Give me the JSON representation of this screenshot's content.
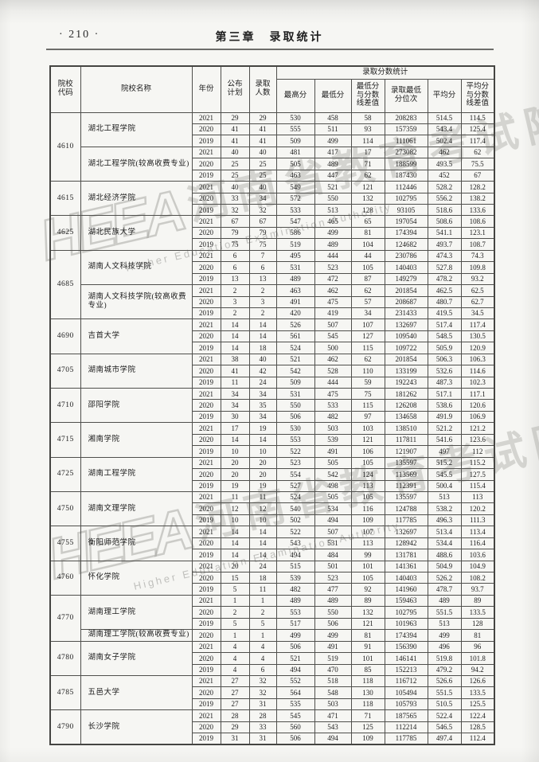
{
  "page": {
    "page_number": "· 210 ·",
    "chapter_title": "第三章　录取统计"
  },
  "watermark": {
    "logo": "HEEA",
    "cn": "河南省教育考试院",
    "en": "Higher Education Examination Authority"
  },
  "table": {
    "columns": {
      "code": "院校\n代码",
      "name": "院校名称",
      "year": "年份",
      "plan": "公布\n计划",
      "admitted": "录取\n人数",
      "score_group": "录取分数统计",
      "max": "最高分",
      "min": "最低分",
      "min_diff": "最低分\n与分数\n线差值",
      "min_rank": "录取最低\n分位次",
      "avg": "平均分",
      "avg_diff": "平均分\n与分数\n线差值"
    },
    "groups": [
      {
        "code": "4610",
        "schools": [
          {
            "name": "湖北工程学院",
            "rows": [
              [
                "2021",
                "29",
                "29",
                "530",
                "458",
                "58",
                "208283",
                "514.5",
                "114.5"
              ],
              [
                "2020",
                "41",
                "41",
                "555",
                "511",
                "93",
                "157359",
                "543.4",
                "125.4"
              ],
              [
                "2019",
                "41",
                "41",
                "509",
                "499",
                "114",
                "111061",
                "502.4",
                "117.4"
              ]
            ]
          },
          {
            "name": "湖北工程学院(较高收费专业)",
            "rows": [
              [
                "2021",
                "40",
                "40",
                "481",
                "417",
                "17",
                "273082",
                "462",
                "62"
              ],
              [
                "2020",
                "25",
                "25",
                "505",
                "489",
                "71",
                "188599",
                "493.5",
                "75.5"
              ],
              [
                "2019",
                "25",
                "25",
                "463",
                "447",
                "62",
                "187430",
                "452",
                "67"
              ]
            ]
          }
        ]
      },
      {
        "code": "4615",
        "schools": [
          {
            "name": "湖北经济学院",
            "rows": [
              [
                "2021",
                "40",
                "40",
                "549",
                "521",
                "121",
                "112446",
                "528.2",
                "128.2"
              ],
              [
                "2020",
                "33",
                "34",
                "572",
                "550",
                "132",
                "102795",
                "556.2",
                "138.2"
              ],
              [
                "2019",
                "32",
                "32",
                "533",
                "513",
                "128",
                "93105",
                "518.6",
                "133.6"
              ]
            ]
          }
        ]
      },
      {
        "code": "4625",
        "schools": [
          {
            "name": "湖北民族大学",
            "rows": [
              [
                "2021",
                "67",
                "67",
                "547",
                "465",
                "65",
                "197054",
                "508.6",
                "108.6"
              ],
              [
                "2020",
                "79",
                "79",
                "586",
                "499",
                "81",
                "174394",
                "541.1",
                "123.1"
              ],
              [
                "2019",
                "75",
                "75",
                "519",
                "489",
                "104",
                "124682",
                "493.7",
                "108.7"
              ]
            ]
          }
        ]
      },
      {
        "code": "4685",
        "schools": [
          {
            "name": "湖南人文科技学院",
            "rows": [
              [
                "2021",
                "6",
                "7",
                "495",
                "444",
                "44",
                "230786",
                "474.3",
                "74.3"
              ],
              [
                "2020",
                "6",
                "6",
                "531",
                "523",
                "105",
                "140403",
                "527.8",
                "109.8"
              ],
              [
                "2019",
                "13",
                "13",
                "489",
                "472",
                "87",
                "149279",
                "478.2",
                "93.2"
              ]
            ]
          },
          {
            "name": "湖南人文科技学院(较高收费专业)",
            "rows": [
              [
                "2021",
                "2",
                "2",
                "463",
                "462",
                "62",
                "201854",
                "462.5",
                "62.5"
              ],
              [
                "2020",
                "3",
                "3",
                "491",
                "475",
                "57",
                "208687",
                "480.7",
                "62.7"
              ],
              [
                "2019",
                "2",
                "2",
                "420",
                "419",
                "34",
                "231433",
                "419.5",
                "34.5"
              ]
            ]
          }
        ]
      },
      {
        "code": "4690",
        "schools": [
          {
            "name": "吉首大学",
            "rows": [
              [
                "2021",
                "14",
                "14",
                "526",
                "507",
                "107",
                "132697",
                "517.4",
                "117.4"
              ],
              [
                "2020",
                "14",
                "14",
                "561",
                "545",
                "127",
                "109540",
                "548.5",
                "130.5"
              ],
              [
                "2019",
                "14",
                "18",
                "524",
                "500",
                "115",
                "109722",
                "505.9",
                "120.9"
              ]
            ]
          }
        ]
      },
      {
        "code": "4705",
        "schools": [
          {
            "name": "湖南城市学院",
            "rows": [
              [
                "2021",
                "38",
                "40",
                "521",
                "462",
                "62",
                "201854",
                "506.3",
                "106.3"
              ],
              [
                "2020",
                "41",
                "42",
                "542",
                "528",
                "110",
                "133199",
                "532.6",
                "114.6"
              ],
              [
                "2019",
                "11",
                "24",
                "509",
                "444",
                "59",
                "192243",
                "487.3",
                "102.3"
              ]
            ]
          }
        ]
      },
      {
        "code": "4710",
        "schools": [
          {
            "name": "邵阳学院",
            "rows": [
              [
                "2021",
                "34",
                "34",
                "531",
                "475",
                "75",
                "181262",
                "517.1",
                "117.1"
              ],
              [
                "2020",
                "34",
                "35",
                "550",
                "533",
                "115",
                "126208",
                "538.6",
                "120.6"
              ],
              [
                "2019",
                "30",
                "34",
                "506",
                "482",
                "97",
                "134658",
                "491.9",
                "106.9"
              ]
            ]
          }
        ]
      },
      {
        "code": "4715",
        "schools": [
          {
            "name": "湘南学院",
            "rows": [
              [
                "2021",
                "17",
                "19",
                "530",
                "503",
                "103",
                "138510",
                "521.2",
                "121.2"
              ],
              [
                "2020",
                "14",
                "14",
                "553",
                "539",
                "121",
                "117811",
                "541.6",
                "123.6"
              ],
              [
                "2019",
                "10",
                "10",
                "522",
                "491",
                "106",
                "121907",
                "497",
                "112"
              ]
            ]
          }
        ]
      },
      {
        "code": "4725",
        "schools": [
          {
            "name": "湖南工程学院",
            "rows": [
              [
                "2021",
                "20",
                "20",
                "523",
                "505",
                "105",
                "135597",
                "515.2",
                "115.2"
              ],
              [
                "2020",
                "20",
                "20",
                "554",
                "542",
                "124",
                "113569",
                "545.5",
                "127.5"
              ],
              [
                "2019",
                "19",
                "19",
                "527",
                "498",
                "113",
                "112391",
                "500.4",
                "115.4"
              ]
            ]
          }
        ]
      },
      {
        "code": "4750",
        "schools": [
          {
            "name": "湖南文理学院",
            "rows": [
              [
                "2021",
                "11",
                "11",
                "524",
                "505",
                "105",
                "135597",
                "513",
                "113"
              ],
              [
                "2020",
                "12",
                "12",
                "540",
                "534",
                "116",
                "124788",
                "538.2",
                "120.2"
              ],
              [
                "2019",
                "10",
                "10",
                "502",
                "494",
                "109",
                "117785",
                "496.3",
                "111.3"
              ]
            ]
          }
        ]
      },
      {
        "code": "4755",
        "schools": [
          {
            "name": "衡阳师范学院",
            "rows": [
              [
                "2021",
                "14",
                "14",
                "522",
                "507",
                "107",
                "132697",
                "513.4",
                "113.4"
              ],
              [
                "2020",
                "14",
                "14",
                "543",
                "531",
                "113",
                "128942",
                "534.4",
                "116.4"
              ],
              [
                "2019",
                "14",
                "14",
                "494",
                "484",
                "99",
                "131781",
                "488.6",
                "103.6"
              ]
            ]
          }
        ]
      },
      {
        "code": "4760",
        "schools": [
          {
            "name": "怀化学院",
            "rows": [
              [
                "2021",
                "20",
                "24",
                "515",
                "501",
                "101",
                "141361",
                "504.9",
                "104.9"
              ],
              [
                "2020",
                "15",
                "18",
                "539",
                "523",
                "105",
                "140403",
                "526.2",
                "108.2"
              ],
              [
                "2019",
                "5",
                "11",
                "482",
                "477",
                "92",
                "141960",
                "478.7",
                "93.7"
              ]
            ]
          }
        ]
      },
      {
        "code": "4770",
        "schools": [
          {
            "name": "湖南理工学院",
            "rows": [
              [
                "2021",
                "1",
                "1",
                "489",
                "489",
                "89",
                "159463",
                "489",
                "89"
              ],
              [
                "2020",
                "2",
                "2",
                "553",
                "550",
                "132",
                "102795",
                "551.5",
                "133.5"
              ],
              [
                "2019",
                "5",
                "5",
                "517",
                "506",
                "121",
                "101963",
                "513",
                "128"
              ]
            ]
          },
          {
            "name": "湖南理工学院(较高收费专业)",
            "rows": [
              [
                "2020",
                "1",
                "1",
                "499",
                "499",
                "81",
                "174394",
                "499",
                "81"
              ]
            ]
          }
        ]
      },
      {
        "code": "4780",
        "schools": [
          {
            "name": "湖南女子学院",
            "rows": [
              [
                "2021",
                "4",
                "4",
                "506",
                "491",
                "91",
                "156390",
                "496",
                "96"
              ],
              [
                "2020",
                "4",
                "4",
                "521",
                "519",
                "101",
                "146141",
                "519.8",
                "101.8"
              ],
              [
                "2019",
                "4",
                "6",
                "494",
                "470",
                "85",
                "152213",
                "479.2",
                "94.2"
              ]
            ]
          }
        ]
      },
      {
        "code": "4785",
        "schools": [
          {
            "name": "五邑大学",
            "rows": [
              [
                "2021",
                "27",
                "32",
                "552",
                "518",
                "118",
                "116712",
                "526.6",
                "126.6"
              ],
              [
                "2020",
                "27",
                "32",
                "564",
                "548",
                "130",
                "105494",
                "551.5",
                "133.5"
              ],
              [
                "2019",
                "27",
                "31",
                "535",
                "503",
                "118",
                "105793",
                "510.5",
                "125.5"
              ]
            ]
          }
        ]
      },
      {
        "code": "4790",
        "schools": [
          {
            "name": "长沙学院",
            "rows": [
              [
                "2021",
                "28",
                "28",
                "545",
                "471",
                "71",
                "187565",
                "522.4",
                "122.4"
              ],
              [
                "2020",
                "29",
                "33",
                "560",
                "543",
                "125",
                "112214",
                "546.5",
                "128.5"
              ],
              [
                "2019",
                "31",
                "31",
                "506",
                "494",
                "109",
                "117785",
                "497.4",
                "112.4"
              ]
            ]
          }
        ]
      }
    ]
  }
}
